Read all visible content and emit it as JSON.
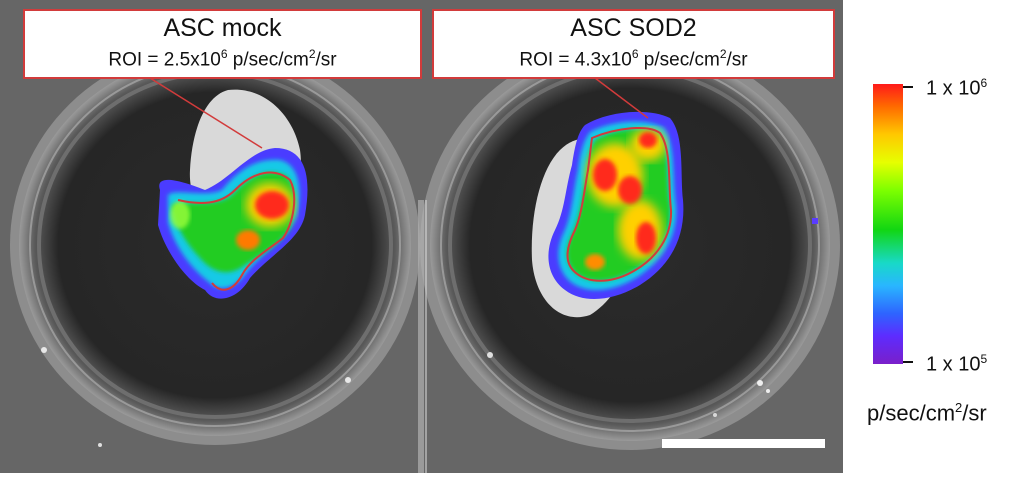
{
  "panels": [
    {
      "title": "ASC mock",
      "roi_prefix": "ROI = 2.5x10",
      "roi_exp": "6",
      "roi_unit_a": " p/sec/cm",
      "roi_unit_sup": "2",
      "roi_unit_b": "/sr"
    },
    {
      "title": "ASC SOD2",
      "roi_prefix": "ROI = 4.3x10",
      "roi_exp": "6",
      "roi_unit_a": " p/sec/cm",
      "roi_unit_sup": "2",
      "roi_unit_b": "/sr"
    }
  ],
  "legend": {
    "max_label": "1 x 10",
    "max_exp": "6",
    "min_label": "1 x 10",
    "min_exp": "5",
    "unit_a": "p/sec/cm",
    "unit_sup": "2",
    "unit_b": "/sr"
  },
  "colors": {
    "roi_outline": "#d23b3b",
    "scale_bar": "#ffffff"
  }
}
